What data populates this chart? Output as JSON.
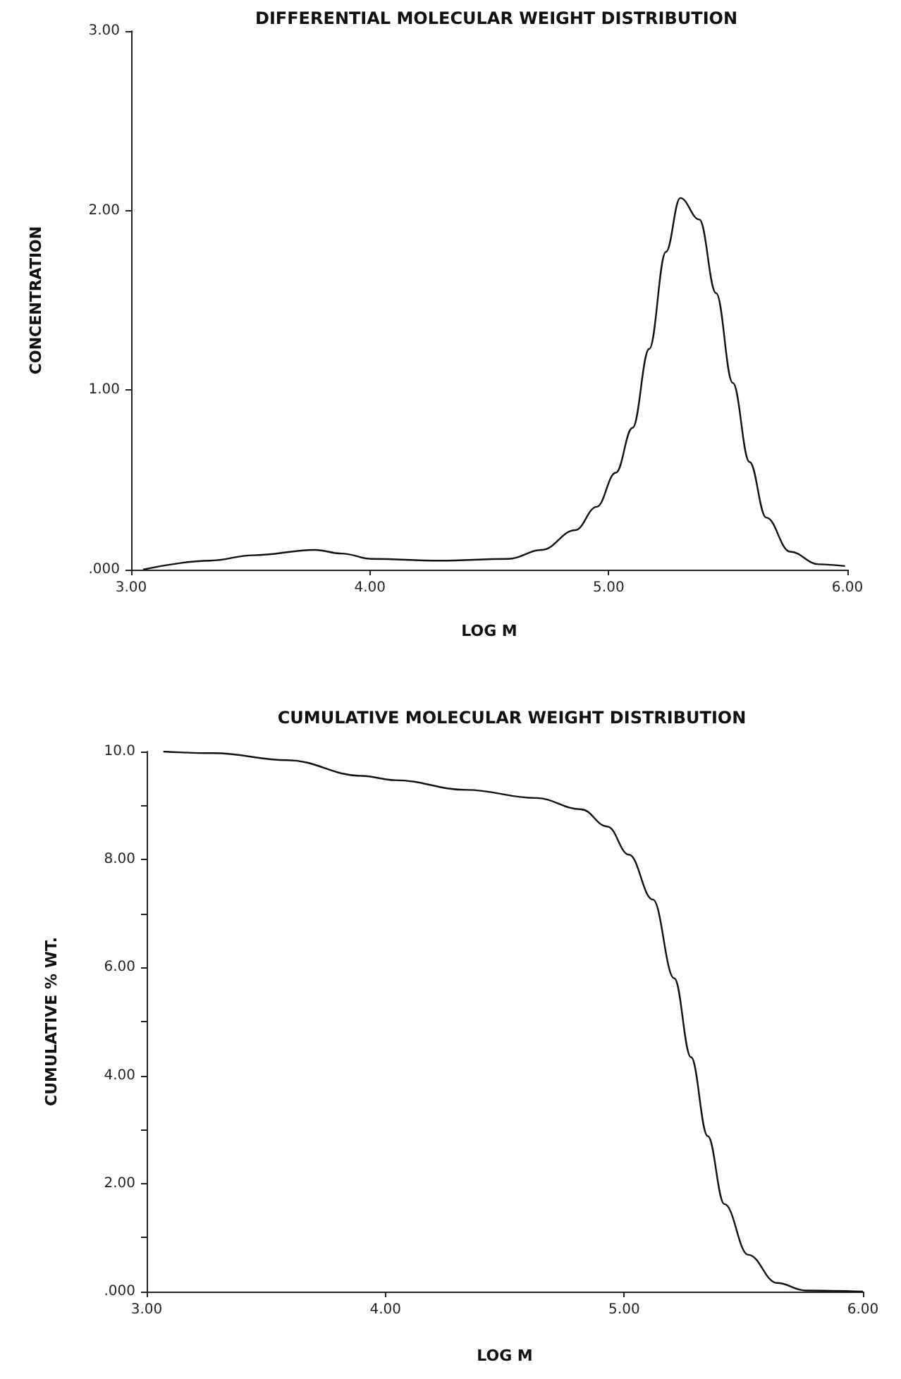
{
  "chart_data": [
    {
      "type": "line",
      "title": "DIFFERENTIAL MOLECULAR WEIGHT DISTRIBUTION",
      "xlabel": "LOG M",
      "ylabel": "CONCENTRATION",
      "x": [
        3.05,
        3.33,
        3.51,
        3.77,
        3.88,
        4.01,
        4.29,
        4.58,
        4.72,
        4.86,
        4.95,
        5.03,
        5.1,
        5.17,
        5.24,
        5.3,
        5.38,
        5.45,
        5.52,
        5.59,
        5.66,
        5.76,
        5.88,
        5.99
      ],
      "series": [
        {
          "color": "#111111",
          "values": [
            0,
            0.05,
            0.08,
            0.11,
            0.09,
            0.06,
            0.05,
            0.06,
            0.11,
            0.22,
            0.35,
            0.54,
            0.79,
            1.23,
            1.77,
            2.07,
            1.95,
            1.54,
            1.04,
            0.6,
            0.29,
            0.1,
            0.03,
            0.02
          ]
        }
      ],
      "xlim": [
        3,
        6
      ],
      "xticks": [
        {
          "value": 3,
          "label": "3.00"
        },
        {
          "value": 4,
          "label": "4.00"
        },
        {
          "value": 5,
          "label": "5.00"
        },
        {
          "value": 6,
          "label": "6.00"
        }
      ],
      "ylim": [
        0,
        3
      ],
      "yticks": [
        {
          "value": 0,
          "label": ".000"
        },
        {
          "value": 1,
          "label": "1.00"
        },
        {
          "value": 2,
          "label": "2.00"
        },
        {
          "value": 3,
          "label": "3.00"
        }
      ],
      "grid": false,
      "marker": "none",
      "line_style": "solid"
    },
    {
      "type": "line",
      "title": "CUMULATIVE MOLECULAR WEIGHT DISTRIBUTION",
      "xlabel": "LOG M",
      "ylabel": "CUMULATIVE % WT.",
      "x": [
        3.07,
        3.28,
        3.59,
        3.9,
        4.04,
        4.34,
        4.63,
        4.82,
        4.93,
        5.02,
        5.12,
        5.21,
        5.28,
        5.35,
        5.42,
        5.52,
        5.64,
        5.76,
        6.0
      ],
      "series": [
        {
          "color": "#111111",
          "values": [
            10,
            9.97,
            9.84,
            9.55,
            9.47,
            9.29,
            9.14,
            8.93,
            8.61,
            8.09,
            7.26,
            5.8,
            4.34,
            2.88,
            1.62,
            0.68,
            0.16,
            0.02,
            0
          ]
        }
      ],
      "xlim": [
        3,
        6
      ],
      "xticks": [
        {
          "value": 3,
          "label": "3.00"
        },
        {
          "value": 4,
          "label": "4.00"
        },
        {
          "value": 5,
          "label": "5.00"
        },
        {
          "value": 6,
          "label": "6.00"
        }
      ],
      "ylim": [
        0,
        10
      ],
      "yticks": [
        {
          "value": 0,
          "label": ".000"
        },
        {
          "value": 1,
          "label": null
        },
        {
          "value": 2,
          "label": "2.00"
        },
        {
          "value": 3,
          "label": null
        },
        {
          "value": 4,
          "label": "4.00"
        },
        {
          "value": 5,
          "label": null
        },
        {
          "value": 6,
          "label": "6.00"
        },
        {
          "value": 7,
          "label": null
        },
        {
          "value": 8,
          "label": "8.00"
        },
        {
          "value": 9,
          "label": null
        },
        {
          "value": 10,
          "label": "10.0"
        }
      ],
      "grid": false,
      "marker": "none",
      "line_style": "solid"
    }
  ]
}
